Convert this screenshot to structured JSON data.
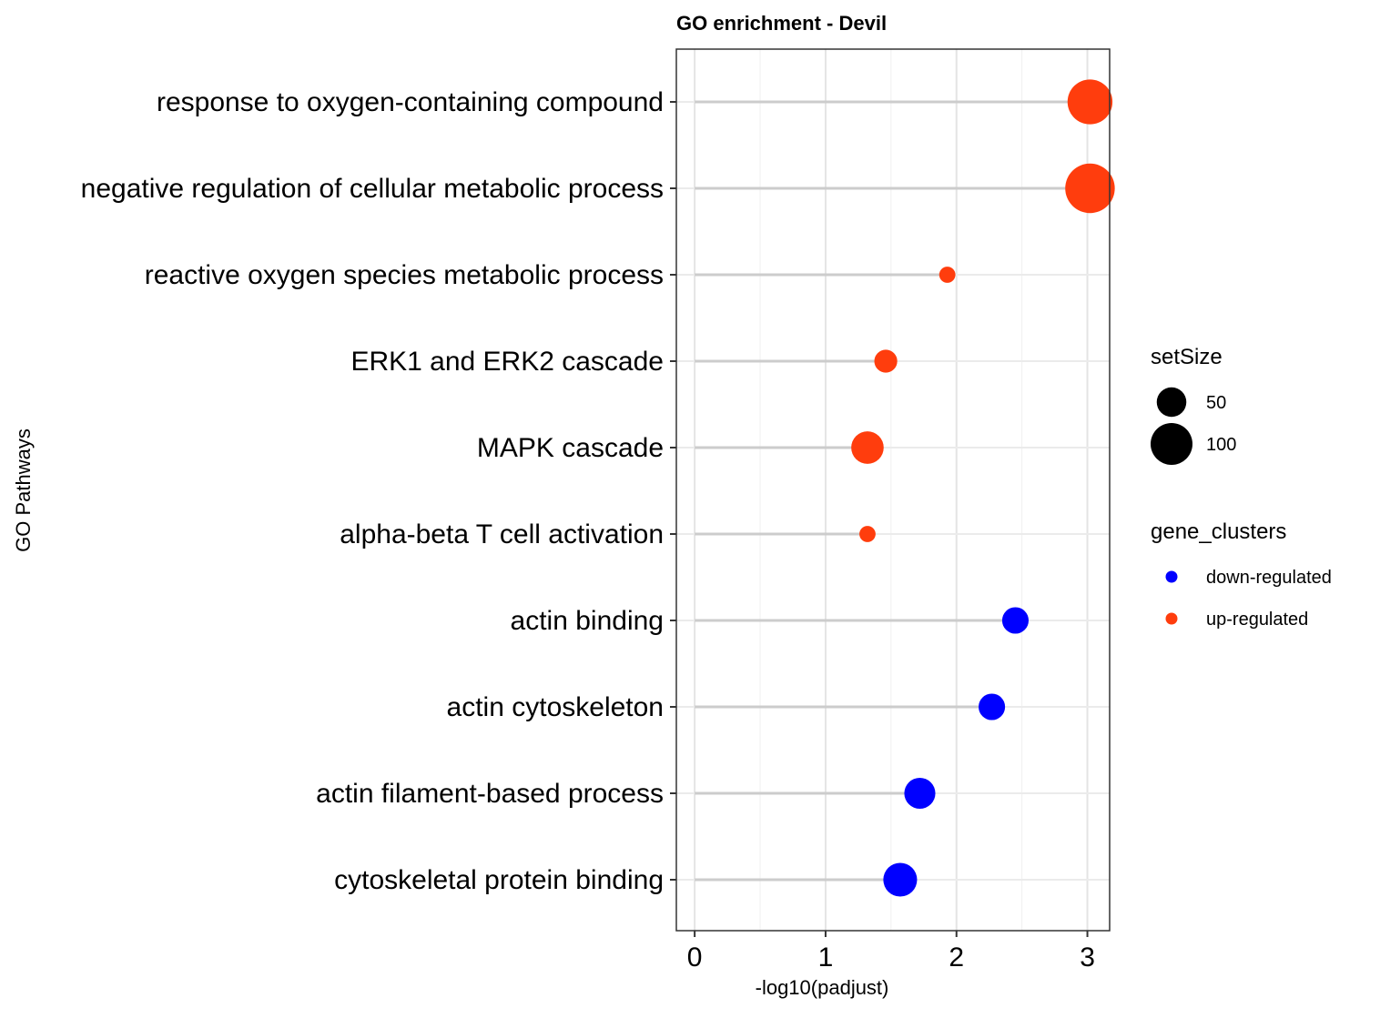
{
  "chart_data": {
    "type": "scatter",
    "subtype": "lollipop",
    "title": "GO enrichment - Devil",
    "xlabel": "-log10(padjust)",
    "ylabel": "GO Pathways",
    "xlim": [
      -0.14,
      3.17
    ],
    "xticks": [
      0,
      1,
      2,
      3
    ],
    "grid": true,
    "legend_position": "right",
    "size_legend": {
      "title": "setSize",
      "entries": [
        {
          "label": "50",
          "value": 50
        },
        {
          "label": "100",
          "value": 100
        }
      ]
    },
    "color_legend": {
      "title": "gene_clusters",
      "entries": [
        {
          "label": "down-regulated",
          "color": "#0000ff"
        },
        {
          "label": "up-regulated",
          "color": "#ff3d0d"
        }
      ]
    },
    "points": [
      {
        "pathway": "response to oxygen-containing compound",
        "x": 3.02,
        "setSize": 115,
        "cluster": "up-regulated"
      },
      {
        "pathway": "negative regulation of cellular metabolic process",
        "x": 3.02,
        "setSize": 140,
        "cluster": "up-regulated"
      },
      {
        "pathway": "reactive oxygen species metabolic process",
        "x": 1.93,
        "setSize": 15,
        "cluster": "up-regulated"
      },
      {
        "pathway": "ERK1 and ERK2 cascade",
        "x": 1.46,
        "setSize": 30,
        "cluster": "up-regulated"
      },
      {
        "pathway": "MAPK cascade",
        "x": 1.32,
        "setSize": 60,
        "cluster": "up-regulated"
      },
      {
        "pathway": "alpha-beta T cell activation",
        "x": 1.32,
        "setSize": 15,
        "cluster": "up-regulated"
      },
      {
        "pathway": "actin binding",
        "x": 2.45,
        "setSize": 40,
        "cluster": "down-regulated"
      },
      {
        "pathway": "actin cytoskeleton",
        "x": 2.27,
        "setSize": 40,
        "cluster": "down-regulated"
      },
      {
        "pathway": "actin filament-based process",
        "x": 1.72,
        "setSize": 55,
        "cluster": "down-regulated"
      },
      {
        "pathway": "cytoskeletal protein binding",
        "x": 1.57,
        "setSize": 65,
        "cluster": "down-regulated"
      }
    ]
  }
}
